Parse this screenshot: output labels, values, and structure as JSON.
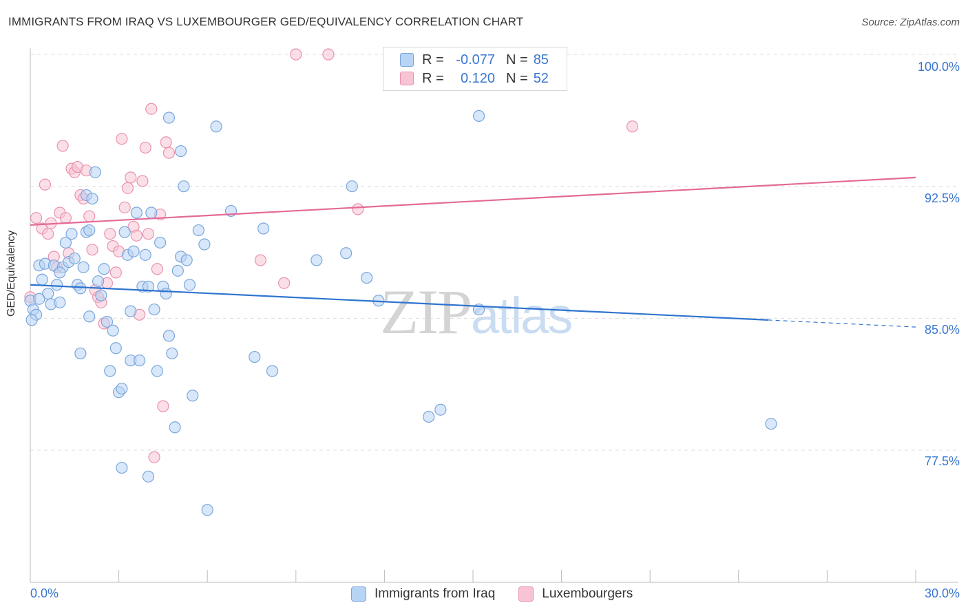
{
  "title": "IMMIGRANTS FROM IRAQ VS LUXEMBOURGER GED/EQUIVALENCY CORRELATION CHART",
  "source": "Source: ZipAtlas.com",
  "watermark": {
    "zip": "ZIP",
    "atlas": "atlas"
  },
  "colors": {
    "blue_fill": "#b8d4f4",
    "blue_stroke": "#7aa6dc",
    "blue_line": "#2f74cf",
    "pink_fill": "#f8c4d4",
    "pink_stroke": "#ea92ae",
    "pink_line": "#e36a96",
    "accent_text": "#3b77d0"
  },
  "legend_top": {
    "rows": [
      {
        "series": "Immigrants from Iraq",
        "r_label": "R =",
        "r_value": "-0.077",
        "n_label": "N =",
        "n_value": "85"
      },
      {
        "series": "Luxembourgers",
        "r_label": "R =",
        "r_value": "0.120",
        "n_label": "N =",
        "n_value": "52"
      }
    ]
  },
  "chart_data": {
    "type": "scatter",
    "title": "IMMIGRANTS FROM IRAQ VS LUXEMBOURGER GED/EQUIVALENCY CORRELATION CHART",
    "xlabel": "",
    "ylabel": "GED/Equivalency",
    "xlim": [
      0,
      30
    ],
    "ylim": [
      71,
      101.7
    ],
    "x_tick_labels": [
      "0.0%",
      "30.0%"
    ],
    "y_ticks": [
      77.5,
      85.0,
      92.5,
      100.0
    ],
    "y_tick_labels": [
      "77.5%",
      "85.0%",
      "92.5%",
      "100.0%"
    ],
    "legend": [
      "Immigrants from Iraq",
      "Luxembourgers"
    ],
    "series": [
      {
        "name": "Immigrants from Iraq",
        "r": -0.077,
        "n": 85,
        "trend": {
          "x0": 0,
          "y0": 86.9,
          "x1": 25,
          "y1": 84.9,
          "dashed_to_x": 30,
          "dashed_to_y": 84.5
        },
        "points": [
          [
            0.0,
            86.0
          ],
          [
            0.1,
            85.5
          ],
          [
            0.2,
            85.2
          ],
          [
            0.3,
            88.0
          ],
          [
            0.4,
            87.2
          ],
          [
            0.5,
            88.1
          ],
          [
            0.6,
            86.4
          ],
          [
            0.7,
            85.8
          ],
          [
            0.8,
            88.0
          ],
          [
            0.9,
            86.9
          ],
          [
            1.0,
            85.9
          ],
          [
            1.1,
            87.9
          ],
          [
            1.2,
            89.3
          ],
          [
            1.3,
            88.2
          ],
          [
            1.4,
            89.8
          ],
          [
            1.5,
            88.4
          ],
          [
            1.6,
            86.9
          ],
          [
            1.7,
            86.7
          ],
          [
            1.8,
            87.9
          ],
          [
            1.9,
            89.9
          ],
          [
            2.0,
            90.0
          ],
          [
            1.7,
            83.0
          ],
          [
            1.9,
            92.0
          ],
          [
            2.1,
            91.8
          ],
          [
            2.3,
            87.1
          ],
          [
            2.4,
            86.3
          ],
          [
            2.5,
            87.8
          ],
          [
            2.2,
            93.3
          ],
          [
            2.6,
            84.8
          ],
          [
            2.7,
            82.0
          ],
          [
            2.8,
            84.3
          ],
          [
            2.9,
            83.3
          ],
          [
            3.0,
            80.8
          ],
          [
            3.1,
            81.0
          ],
          [
            3.2,
            89.9
          ],
          [
            3.3,
            88.6
          ],
          [
            3.4,
            82.6
          ],
          [
            3.5,
            88.8
          ],
          [
            3.6,
            91.0
          ],
          [
            3.7,
            82.6
          ],
          [
            3.8,
            86.8
          ],
          [
            3.9,
            88.6
          ],
          [
            4.0,
            86.8
          ],
          [
            4.1,
            91.0
          ],
          [
            4.2,
            85.5
          ],
          [
            4.3,
            82.0
          ],
          [
            4.4,
            89.3
          ],
          [
            4.5,
            86.8
          ],
          [
            4.6,
            86.4
          ],
          [
            4.7,
            84.0
          ],
          [
            4.8,
            83.0
          ],
          [
            4.9,
            78.8
          ],
          [
            5.0,
            87.7
          ],
          [
            5.1,
            88.5
          ],
          [
            5.2,
            92.5
          ],
          [
            5.3,
            88.3
          ],
          [
            5.4,
            86.9
          ],
          [
            5.5,
            80.6
          ],
          [
            5.7,
            90.0
          ],
          [
            5.9,
            89.2
          ],
          [
            6.0,
            74.1
          ],
          [
            3.1,
            76.5
          ],
          [
            4.0,
            76.0
          ],
          [
            6.3,
            95.9
          ],
          [
            4.7,
            96.4
          ],
          [
            5.1,
            94.5
          ],
          [
            6.8,
            91.1
          ],
          [
            7.6,
            82.8
          ],
          [
            8.2,
            82.0
          ],
          [
            7.9,
            90.1
          ],
          [
            9.7,
            88.3
          ],
          [
            10.7,
            88.7
          ],
          [
            10.9,
            92.5
          ],
          [
            11.4,
            87.3
          ],
          [
            11.8,
            86.0
          ],
          [
            13.5,
            79.4
          ],
          [
            13.9,
            79.8
          ],
          [
            15.2,
            85.5
          ],
          [
            15.2,
            96.5
          ],
          [
            25.1,
            79.0
          ],
          [
            0.05,
            84.9
          ],
          [
            0.3,
            86.1
          ],
          [
            1.0,
            87.6
          ],
          [
            2.0,
            85.1
          ],
          [
            3.4,
            85.4
          ]
        ]
      },
      {
        "name": "Luxembourgers",
        "r": 0.12,
        "n": 52,
        "trend": {
          "x0": 0,
          "y0": 90.3,
          "x1": 30,
          "y1": 93.0
        },
        "points": [
          [
            0.0,
            86.2
          ],
          [
            0.2,
            90.7
          ],
          [
            0.4,
            90.1
          ],
          [
            0.5,
            92.6
          ],
          [
            0.6,
            89.8
          ],
          [
            0.7,
            90.4
          ],
          [
            0.8,
            88.5
          ],
          [
            0.9,
            87.9
          ],
          [
            1.0,
            91.0
          ],
          [
            1.1,
            94.8
          ],
          [
            1.2,
            90.7
          ],
          [
            1.3,
            88.7
          ],
          [
            1.4,
            93.5
          ],
          [
            1.5,
            93.3
          ],
          [
            1.6,
            93.6
          ],
          [
            1.7,
            92.0
          ],
          [
            1.8,
            91.8
          ],
          [
            1.9,
            93.4
          ],
          [
            2.0,
            90.8
          ],
          [
            2.1,
            88.9
          ],
          [
            2.2,
            86.6
          ],
          [
            2.3,
            86.2
          ],
          [
            2.4,
            85.9
          ],
          [
            2.5,
            84.7
          ],
          [
            2.6,
            87.0
          ],
          [
            2.7,
            89.8
          ],
          [
            2.8,
            89.1
          ],
          [
            2.9,
            87.6
          ],
          [
            3.0,
            88.8
          ],
          [
            3.1,
            95.2
          ],
          [
            3.2,
            91.3
          ],
          [
            3.3,
            92.4
          ],
          [
            3.4,
            93.0
          ],
          [
            3.5,
            90.2
          ],
          [
            3.6,
            89.7
          ],
          [
            3.7,
            85.2
          ],
          [
            3.8,
            92.8
          ],
          [
            3.9,
            94.7
          ],
          [
            4.0,
            89.8
          ],
          [
            4.1,
            96.9
          ],
          [
            4.2,
            77.1
          ],
          [
            4.3,
            87.8
          ],
          [
            4.4,
            90.9
          ],
          [
            4.5,
            80.0
          ],
          [
            4.6,
            95.0
          ],
          [
            4.7,
            94.4
          ],
          [
            7.8,
            88.3
          ],
          [
            8.6,
            87.0
          ],
          [
            9.0,
            100.0
          ],
          [
            10.1,
            100.0
          ],
          [
            11.1,
            91.2
          ],
          [
            20.4,
            95.9
          ]
        ]
      }
    ]
  },
  "legend_bottom": [
    "Immigrants from Iraq",
    "Luxembourgers"
  ]
}
